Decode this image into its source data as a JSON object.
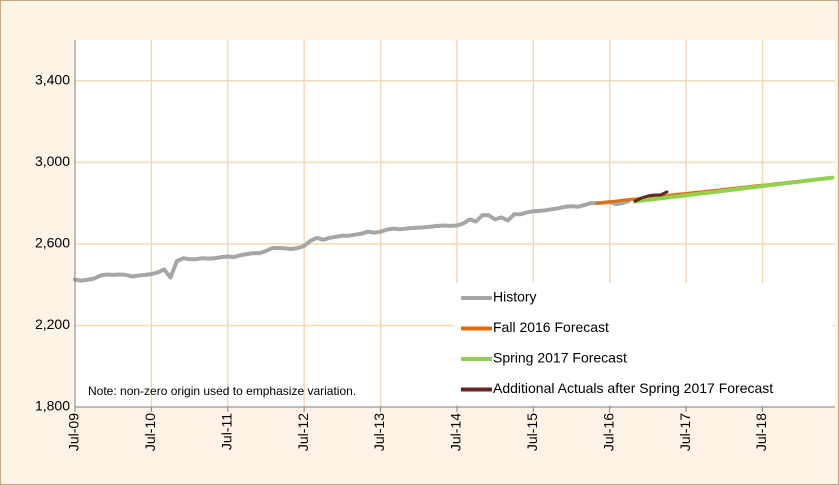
{
  "chart_data": {
    "type": "line",
    "categories": [
      "Jul-09",
      null,
      null,
      null,
      null,
      null,
      null,
      null,
      null,
      null,
      null,
      null,
      "Jul-10",
      null,
      null,
      null,
      null,
      null,
      null,
      null,
      null,
      null,
      null,
      null,
      "Jul-11",
      null,
      null,
      null,
      null,
      null,
      null,
      null,
      null,
      null,
      null,
      null,
      "Jul-12",
      null,
      null,
      null,
      null,
      null,
      null,
      null,
      null,
      null,
      null,
      null,
      "Jul-13",
      null,
      null,
      null,
      null,
      null,
      null,
      null,
      null,
      null,
      null,
      null,
      "Jul-14",
      null,
      null,
      null,
      null,
      null,
      null,
      null,
      null,
      null,
      null,
      null,
      "Jul-15",
      null,
      null,
      null,
      null,
      null,
      null,
      null,
      null,
      null,
      null,
      null,
      "Jul-16",
      null,
      null,
      null,
      null,
      null,
      null,
      null,
      null,
      null,
      null,
      null,
      "Jul-17",
      null,
      null,
      null,
      null,
      null,
      null,
      null,
      null,
      null,
      null,
      null,
      "Jul-18",
      null,
      null,
      null,
      null,
      null,
      null,
      null,
      null,
      null,
      null,
      null
    ],
    "series": [
      {
        "name": "History",
        "color": "#a6a6a6",
        "values": [
          2425,
          2420,
          2425,
          2430,
          2445,
          2450,
          2448,
          2450,
          2448,
          2440,
          2445,
          2448,
          2452,
          2460,
          2475,
          2435,
          2515,
          2530,
          2525,
          2525,
          2530,
          2528,
          2530,
          2535,
          2538,
          2535,
          2545,
          2550,
          2555,
          2555,
          2565,
          2580,
          2580,
          2578,
          2575,
          2580,
          2590,
          2615,
          2630,
          2620,
          2630,
          2635,
          2640,
          2640,
          2645,
          2650,
          2660,
          2655,
          2660,
          2670,
          2675,
          2672,
          2675,
          2678,
          2680,
          2682,
          2685,
          2688,
          2690,
          2688,
          2690,
          2700,
          2720,
          2710,
          2740,
          2740,
          2720,
          2730,
          2715,
          2745,
          2745,
          2755,
          2760,
          2762,
          2765,
          2770,
          2775,
          2782,
          2785,
          2782,
          2790,
          2800,
          2800,
          2802,
          2805,
          2795,
          2800,
          2810,
          null,
          null,
          null,
          null,
          null,
          null,
          null,
          null,
          null,
          null,
          null,
          null,
          null,
          null,
          null,
          null,
          null,
          null,
          null,
          null,
          null,
          null,
          null,
          null,
          null,
          null,
          null,
          null,
          null,
          null,
          null,
          null
        ]
      },
      {
        "name": "Fall 2016 Forecast",
        "color": "#e46c0a",
        "values": [
          null,
          null,
          null,
          null,
          null,
          null,
          null,
          null,
          null,
          null,
          null,
          null,
          null,
          null,
          null,
          null,
          null,
          null,
          null,
          null,
          null,
          null,
          null,
          null,
          null,
          null,
          null,
          null,
          null,
          null,
          null,
          null,
          null,
          null,
          null,
          null,
          null,
          null,
          null,
          null,
          null,
          null,
          null,
          null,
          null,
          null,
          null,
          null,
          null,
          null,
          null,
          null,
          null,
          null,
          null,
          null,
          null,
          null,
          null,
          null,
          null,
          null,
          null,
          null,
          null,
          null,
          null,
          null,
          null,
          null,
          null,
          null,
          null,
          null,
          null,
          null,
          null,
          null,
          null,
          null,
          null,
          null,
          2800,
          2803,
          2807,
          2810,
          2814,
          2817,
          2820,
          2824,
          2827,
          2830,
          2834,
          2837,
          2841,
          2844,
          2847,
          2851,
          2854,
          2857,
          2861,
          2864,
          2868,
          2871,
          2874,
          2878,
          2881,
          2885,
          2888,
          2891,
          2895,
          2898,
          2901,
          2905,
          2908,
          2912,
          2915,
          2918,
          2922,
          2925
        ]
      },
      {
        "name": "Spring 2017 Forecast",
        "color": "#92d050",
        "values": [
          null,
          null,
          null,
          null,
          null,
          null,
          null,
          null,
          null,
          null,
          null,
          null,
          null,
          null,
          null,
          null,
          null,
          null,
          null,
          null,
          null,
          null,
          null,
          null,
          null,
          null,
          null,
          null,
          null,
          null,
          null,
          null,
          null,
          null,
          null,
          null,
          null,
          null,
          null,
          null,
          null,
          null,
          null,
          null,
          null,
          null,
          null,
          null,
          null,
          null,
          null,
          null,
          null,
          null,
          null,
          null,
          null,
          null,
          null,
          null,
          null,
          null,
          null,
          null,
          null,
          null,
          null,
          null,
          null,
          null,
          null,
          null,
          null,
          null,
          null,
          null,
          null,
          null,
          null,
          null,
          null,
          null,
          null,
          null,
          null,
          null,
          null,
          null,
          2808,
          2812,
          2816,
          2819,
          2823,
          2827,
          2831,
          2834,
          2838,
          2842,
          2846,
          2849,
          2853,
          2857,
          2861,
          2865,
          2868,
          2872,
          2876,
          2880,
          2884,
          2887,
          2891,
          2895,
          2899,
          2902,
          2906,
          2910,
          2914,
          2918,
          2921,
          2925
        ]
      },
      {
        "name": "Additional Actuals after Spring 2017 Forecast",
        "color": "#632523",
        "values": [
          null,
          null,
          null,
          null,
          null,
          null,
          null,
          null,
          null,
          null,
          null,
          null,
          null,
          null,
          null,
          null,
          null,
          null,
          null,
          null,
          null,
          null,
          null,
          null,
          null,
          null,
          null,
          null,
          null,
          null,
          null,
          null,
          null,
          null,
          null,
          null,
          null,
          null,
          null,
          null,
          null,
          null,
          null,
          null,
          null,
          null,
          null,
          null,
          null,
          null,
          null,
          null,
          null,
          null,
          null,
          null,
          null,
          null,
          null,
          null,
          null,
          null,
          null,
          null,
          null,
          null,
          null,
          null,
          null,
          null,
          null,
          null,
          null,
          null,
          null,
          null,
          null,
          null,
          null,
          null,
          null,
          null,
          null,
          null,
          null,
          null,
          null,
          null,
          2810,
          2825,
          2835,
          2840,
          2840,
          2855,
          null,
          null,
          null,
          null,
          null,
          null,
          null,
          null,
          null,
          null,
          null,
          null,
          null,
          null,
          null,
          null,
          null,
          null,
          null,
          null,
          null,
          null,
          null,
          null,
          null,
          null
        ]
      }
    ],
    "ylim": [
      1800,
      3600
    ],
    "yticks": [
      {
        "value": 1800,
        "label": "1,800"
      },
      {
        "value": 2200,
        "label": "2,200"
      },
      {
        "value": 2600,
        "label": "2,600"
      },
      {
        "value": 3000,
        "label": "3,000"
      },
      {
        "value": 3400,
        "label": "3,400"
      }
    ],
    "grid": true,
    "legend": "lower right",
    "annotation": "Note: non-zero origin used to emphasize variation."
  }
}
